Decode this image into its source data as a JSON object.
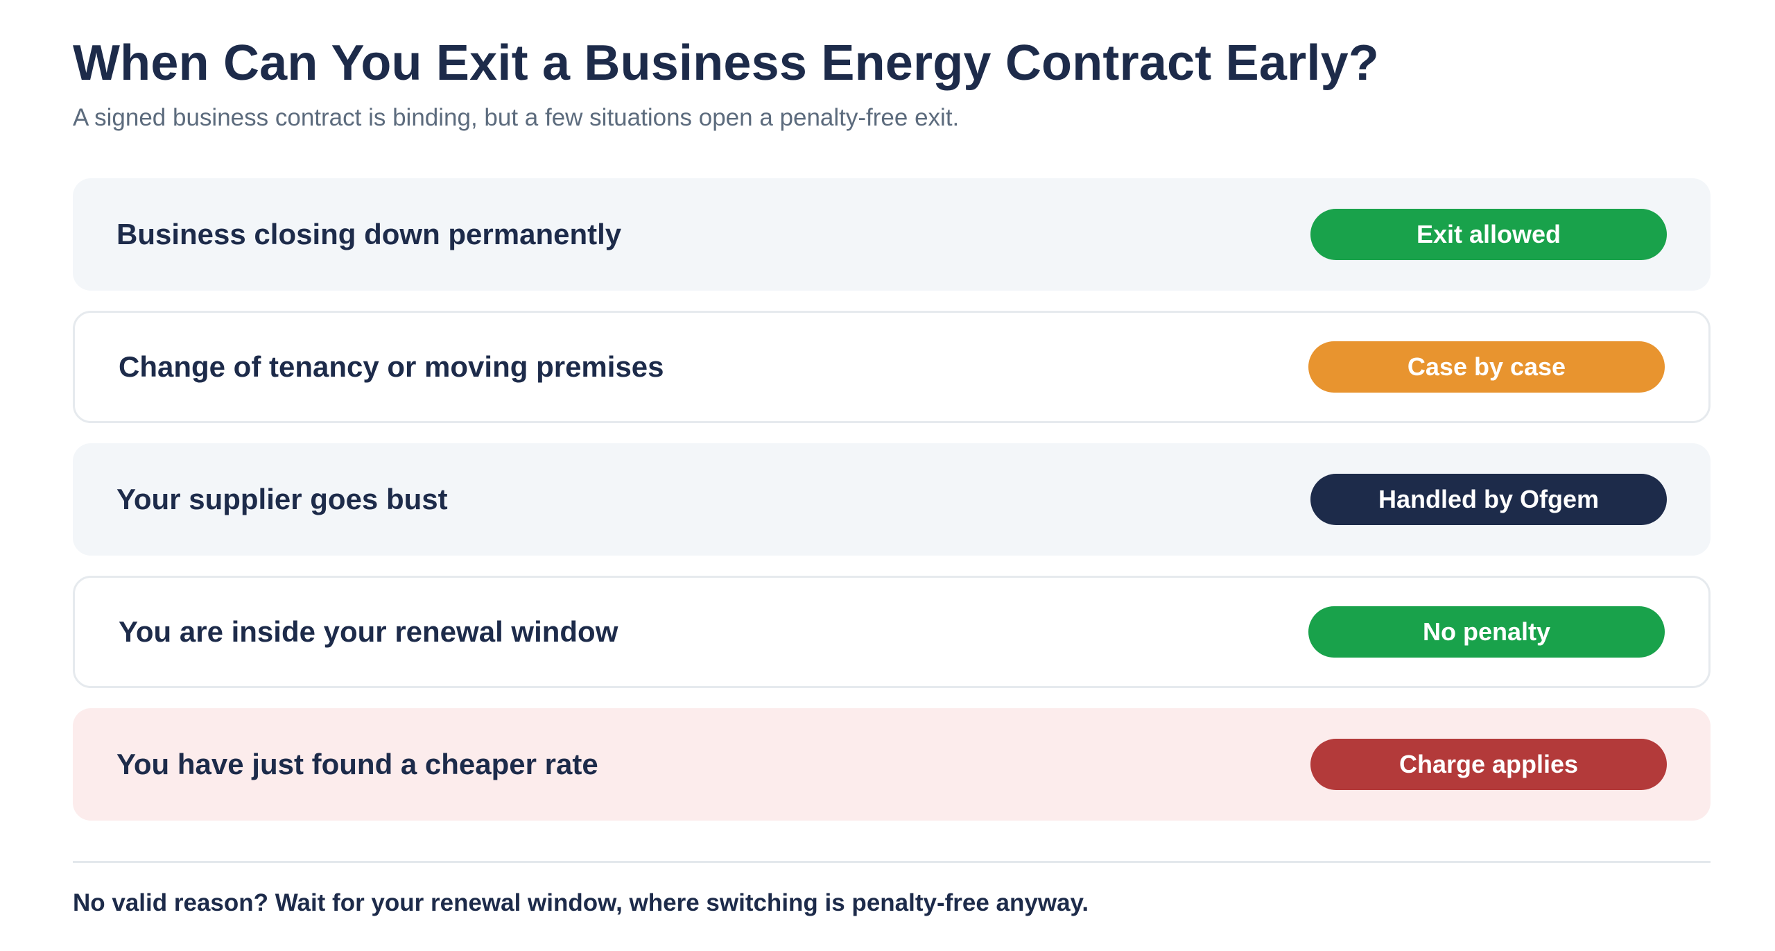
{
  "header": {
    "title": "When Can You Exit a Business Energy Contract Early?",
    "subtitle": "A signed business contract is binding, but a few situations open a penalty-free exit."
  },
  "scenarios": [
    {
      "label": "Business closing down permanently",
      "status": "Exit allowed",
      "status_color": "#19a24b",
      "row_style": "shaded"
    },
    {
      "label": "Change of tenancy or moving premises",
      "status": "Case by case",
      "status_color": "#e8942f",
      "row_style": "outlined"
    },
    {
      "label": "Your supplier goes bust",
      "status": "Handled by Ofgem",
      "status_color": "#1d2b4a",
      "row_style": "shaded"
    },
    {
      "label": "You are inside your renewal window",
      "status": "No penalty",
      "status_color": "#19a24b",
      "row_style": "outlined"
    },
    {
      "label": "You have just found a cheaper rate",
      "status": "Charge applies",
      "status_color": "#b33a3a",
      "row_style": "warning"
    }
  ],
  "footer": {
    "note": "No valid reason? Wait for your renewal window, where switching is penalty-free anyway."
  }
}
